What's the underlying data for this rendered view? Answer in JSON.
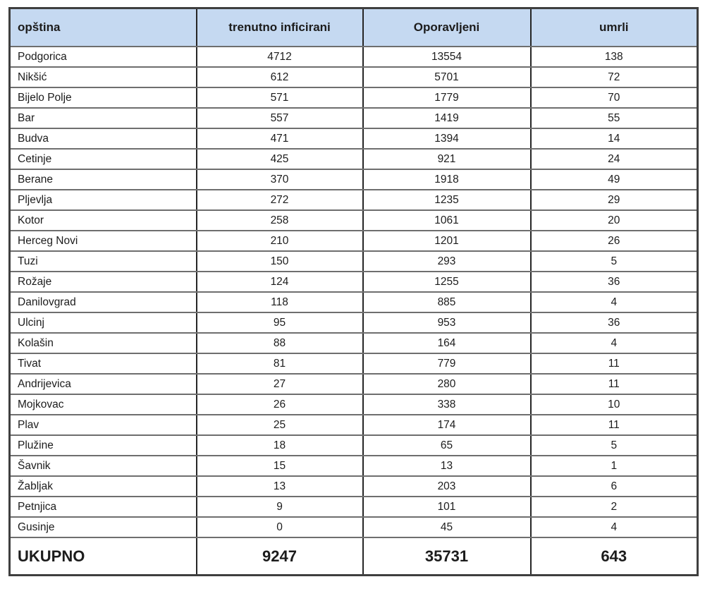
{
  "table": {
    "headers": [
      "opština",
      "trenutno inficirani",
      "Oporavljeni",
      "umrli"
    ],
    "rows": [
      [
        "Podgorica",
        "4712",
        "13554",
        "138"
      ],
      [
        "Nikšić",
        "612",
        "5701",
        "72"
      ],
      [
        "Bijelo Polje",
        "571",
        "1779",
        "70"
      ],
      [
        "Bar",
        "557",
        "1419",
        "55"
      ],
      [
        "Budva",
        "471",
        "1394",
        "14"
      ],
      [
        "Cetinje",
        "425",
        "921",
        "24"
      ],
      [
        "Berane",
        "370",
        "1918",
        "49"
      ],
      [
        "Pljevlja",
        "272",
        "1235",
        "29"
      ],
      [
        "Kotor",
        "258",
        "1061",
        "20"
      ],
      [
        "Herceg Novi",
        "210",
        "1201",
        "26"
      ],
      [
        "Tuzi",
        "150",
        "293",
        "5"
      ],
      [
        "Rožaje",
        "124",
        "1255",
        "36"
      ],
      [
        "Danilovgrad",
        "118",
        "885",
        "4"
      ],
      [
        "Ulcinj",
        "95",
        "953",
        "36"
      ],
      [
        "Kolašin",
        "88",
        "164",
        "4"
      ],
      [
        "Tivat",
        "81",
        "779",
        "11"
      ],
      [
        "Andrijevica",
        "27",
        "280",
        "11"
      ],
      [
        "Mojkovac",
        "26",
        "338",
        "10"
      ],
      [
        "Plav",
        "25",
        "174",
        "11"
      ],
      [
        "Plužine",
        "18",
        "65",
        "5"
      ],
      [
        "Šavnik",
        "15",
        "13",
        "1"
      ],
      [
        "Žabljak",
        "13",
        "203",
        "6"
      ],
      [
        "Petnjica",
        "9",
        "101",
        "2"
      ],
      [
        "Gusinje",
        "0",
        "45",
        "4"
      ]
    ],
    "total": [
      "UKUPNO",
      "9247",
      "35731",
      "643"
    ]
  },
  "colors": {
    "header_bg": "#c5d9f1",
    "grid_horizontal": "#6e6e6e",
    "grid_vertical": "#262626",
    "outer_border": "#3f3f3f",
    "text": "#1c1c1c"
  },
  "chart_data": {
    "type": "table",
    "title": "",
    "columns": [
      "opština",
      "trenutno inficirani",
      "Oporavljeni",
      "umrli"
    ],
    "rows": [
      {
        "opstina": "Podgorica",
        "trenutno_inficirani": 4712,
        "oporavljeni": 13554,
        "umrli": 138
      },
      {
        "opstina": "Nikšić",
        "trenutno_inficirani": 612,
        "oporavljeni": 5701,
        "umrli": 72
      },
      {
        "opstina": "Bijelo Polje",
        "trenutno_inficirani": 571,
        "oporavljeni": 1779,
        "umrli": 70
      },
      {
        "opstina": "Bar",
        "trenutno_inficirani": 557,
        "oporavljeni": 1419,
        "umrli": 55
      },
      {
        "opstina": "Budva",
        "trenutno_inficirani": 471,
        "oporavljeni": 1394,
        "umrli": 14
      },
      {
        "opstina": "Cetinje",
        "trenutno_inficirani": 425,
        "oporavljeni": 921,
        "umrli": 24
      },
      {
        "opstina": "Berane",
        "trenutno_inficirani": 370,
        "oporavljeni": 1918,
        "umrli": 49
      },
      {
        "opstina": "Pljevlja",
        "trenutno_inficirani": 272,
        "oporavljeni": 1235,
        "umrli": 29
      },
      {
        "opstina": "Kotor",
        "trenutno_inficirani": 258,
        "oporavljeni": 1061,
        "umrli": 20
      },
      {
        "opstina": "Herceg Novi",
        "trenutno_inficirani": 210,
        "oporavljeni": 1201,
        "umrli": 26
      },
      {
        "opstina": "Tuzi",
        "trenutno_inficirani": 150,
        "oporavljeni": 293,
        "umrli": 5
      },
      {
        "opstina": "Rožaje",
        "trenutno_inficirani": 124,
        "oporavljeni": 1255,
        "umrli": 36
      },
      {
        "opstina": "Danilovgrad",
        "trenutno_inficirani": 118,
        "oporavljeni": 885,
        "umrli": 4
      },
      {
        "opstina": "Ulcinj",
        "trenutno_inficirani": 95,
        "oporavljeni": 953,
        "umrli": 36
      },
      {
        "opstina": "Kolašin",
        "trenutno_inficirani": 88,
        "oporavljeni": 164,
        "umrli": 4
      },
      {
        "opstina": "Tivat",
        "trenutno_inficirani": 81,
        "oporavljeni": 779,
        "umrli": 11
      },
      {
        "opstina": "Andrijevica",
        "trenutno_inficirani": 27,
        "oporavljeni": 280,
        "umrli": 11
      },
      {
        "opstina": "Mojkovac",
        "trenutno_inficirani": 26,
        "oporavljeni": 338,
        "umrli": 10
      },
      {
        "opstina": "Plav",
        "trenutno_inficirani": 25,
        "oporavljeni": 174,
        "umrli": 11
      },
      {
        "opstina": "Plužine",
        "trenutno_inficirani": 18,
        "oporavljeni": 65,
        "umrli": 5
      },
      {
        "opstina": "Šavnik",
        "trenutno_inficirani": 15,
        "oporavljeni": 13,
        "umrli": 1
      },
      {
        "opstina": "Žabljak",
        "trenutno_inficirani": 13,
        "oporavljeni": 203,
        "umrli": 6
      },
      {
        "opstina": "Petnjica",
        "trenutno_inficirani": 9,
        "oporavljeni": 101,
        "umrli": 2
      },
      {
        "opstina": "Gusinje",
        "trenutno_inficirani": 0,
        "oporavljeni": 45,
        "umrli": 4
      }
    ],
    "totals": {
      "label": "UKUPNO",
      "trenutno_inficirani": 9247,
      "oporavljeni": 35731,
      "umrli": 643
    }
  }
}
